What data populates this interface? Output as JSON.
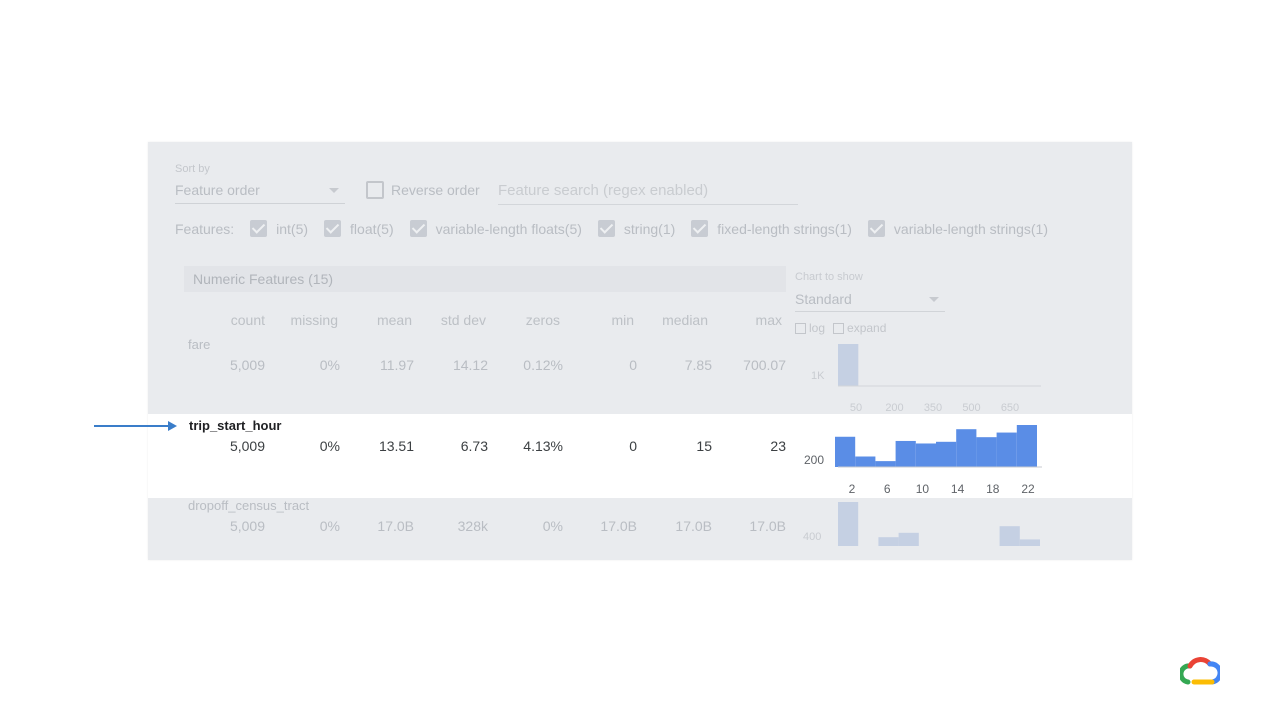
{
  "controls": {
    "sort_by_label": "Sort by",
    "sort_by_value": "Feature order",
    "reverse_order_label": "Reverse order",
    "search_placeholder": "Feature search (regex enabled)",
    "features_label": "Features:",
    "feature_filters": [
      "int(5)",
      "float(5)",
      "variable-length floats(5)",
      "string(1)",
      "fixed-length strings(1)",
      "variable-length strings(1)"
    ]
  },
  "table": {
    "section_title": "Numeric Features (15)",
    "chart_to_show_label": "Chart to show",
    "chart_to_show_value": "Standard",
    "log_label": "log",
    "expand_label": "expand",
    "columns": [
      "count",
      "missing",
      "mean",
      "std dev",
      "zeros",
      "min",
      "median",
      "max"
    ],
    "rows": [
      {
        "name": "fare",
        "values": [
          "5,009",
          "0%",
          "11.97",
          "14.12",
          "0.12%",
          "0",
          "7.85",
          "700.07"
        ]
      },
      {
        "name": "trip_start_hour",
        "values": [
          "5,009",
          "0%",
          "13.51",
          "6.73",
          "4.13%",
          "0",
          "15",
          "23"
        ]
      },
      {
        "name": "dropoff_census_tract",
        "values": [
          "5,009",
          "0%",
          "17.0B",
          "328k",
          "0%",
          "17.0B",
          "17.0B",
          "17.0B"
        ]
      }
    ]
  },
  "charts": {
    "fare": {
      "y_tick": "1K",
      "x_ticks": [
        "50",
        "200",
        "350",
        "500",
        "650"
      ],
      "values": [
        1,
        0,
        0,
        0,
        0,
        0,
        0,
        0,
        0,
        0
      ]
    },
    "trip_start_hour": {
      "y_tick": "200",
      "x_ticks": [
        "2",
        "6",
        "10",
        "14",
        "18",
        "22"
      ],
      "values": [
        0.72,
        0.25,
        0.14,
        0.62,
        0.56,
        0.6,
        0.9,
        0.71,
        0.82,
        1.0
      ]
    },
    "dropoff_census_tract": {
      "y_tick": "400",
      "values": [
        1,
        0,
        0.2,
        0.3,
        0,
        0,
        0,
        0,
        0.45,
        0.15
      ]
    },
    "colors": {
      "bar": "#5a8de6",
      "bar_faded": "#c5d0e3",
      "axis": "#9aa0a6"
    }
  },
  "icons": {
    "arrow": "right-arrow-icon",
    "logo": "google-cloud-logo"
  }
}
